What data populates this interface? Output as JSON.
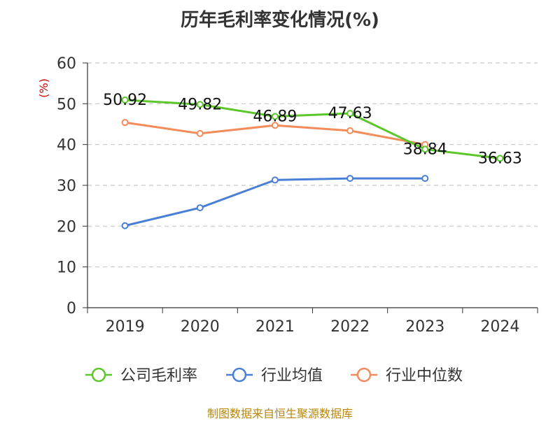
{
  "chart_data": {
    "type": "line",
    "title": "历年毛利率变化情况(%)",
    "ylabel": "(%)",
    "xlabel": "",
    "categories": [
      "2019",
      "2020",
      "2021",
      "2022",
      "2023",
      "2024"
    ],
    "ylim": [
      0,
      60
    ],
    "yticks": [
      0,
      10,
      20,
      30,
      40,
      50,
      60
    ],
    "grid": true,
    "legend_position": "bottom",
    "series": [
      {
        "name": "公司毛利率",
        "color": "#5cc72a",
        "values": [
          50.92,
          49.82,
          46.89,
          47.63,
          38.84,
          36.63
        ],
        "labels": [
          "50.92",
          "49.82",
          "46.89",
          "47.63",
          "38.84",
          "36.63"
        ]
      },
      {
        "name": "行业均值",
        "color": "#4a7fd6",
        "values": [
          20.1,
          24.5,
          31.3,
          31.7,
          31.7,
          null
        ],
        "labels": []
      },
      {
        "name": "行业中位数",
        "color": "#f48b5a",
        "values": [
          45.4,
          42.7,
          44.7,
          43.4,
          40.0,
          null
        ],
        "labels": []
      }
    ]
  },
  "source_text": "制图数据来自恒生聚源数据库"
}
